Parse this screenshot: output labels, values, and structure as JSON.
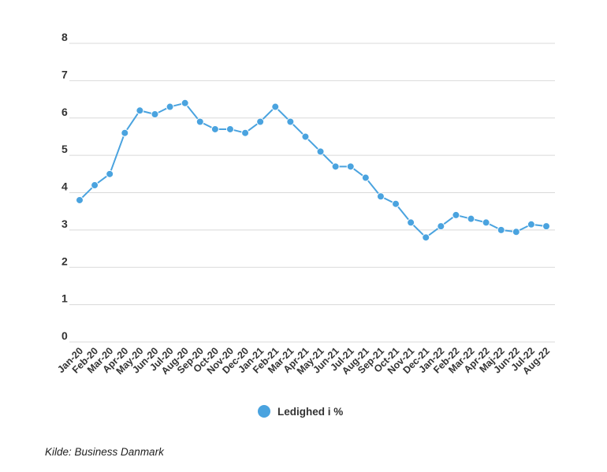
{
  "chart_data": {
    "type": "line",
    "title": "",
    "xlabel": "",
    "ylabel": "",
    "ylim": [
      0,
      8
    ],
    "yticks": [
      "0",
      "1",
      "2",
      "3",
      "4",
      "5",
      "6",
      "7",
      "8"
    ],
    "grid": true,
    "legend_position": "bottom",
    "categories": [
      "Jan-20",
      "Feb-20",
      "Mar-20",
      "Apr-20",
      "May-20",
      "Jun-20",
      "Jul-20",
      "Aug-20",
      "Sep-20",
      "Oct-20",
      "Nov-20",
      "Dec-20",
      "Jan-21",
      "Feb-21",
      "Mar-21",
      "Apr-21",
      "May-21",
      "Jun-21",
      "Jul-21",
      "Aug-21",
      "Sep-21",
      "Oct-21",
      "Nov-21",
      "Dec-21",
      "Jan-22",
      "Feb-22",
      "Mar-22",
      "Apr-22",
      "Maj-22",
      "Jun-22",
      "Jul-22",
      "Aug-22"
    ],
    "series": [
      {
        "name": "Ledighed i %",
        "color": "#4aa3df",
        "values": [
          3.8,
          4.2,
          4.5,
          5.6,
          6.2,
          6.1,
          6.3,
          6.4,
          5.9,
          5.7,
          5.7,
          5.6,
          5.9,
          6.3,
          5.9,
          5.5,
          5.1,
          4.7,
          4.7,
          4.4,
          3.9,
          3.7,
          3.2,
          2.8,
          3.1,
          3.4,
          3.3,
          3.2,
          3.0,
          2.95,
          3.15,
          3.1
        ]
      }
    ]
  },
  "source_text": "Kilde: Business Danmark",
  "colors": {
    "grid": "#d9d9d9",
    "tick_text": "#333333"
  }
}
